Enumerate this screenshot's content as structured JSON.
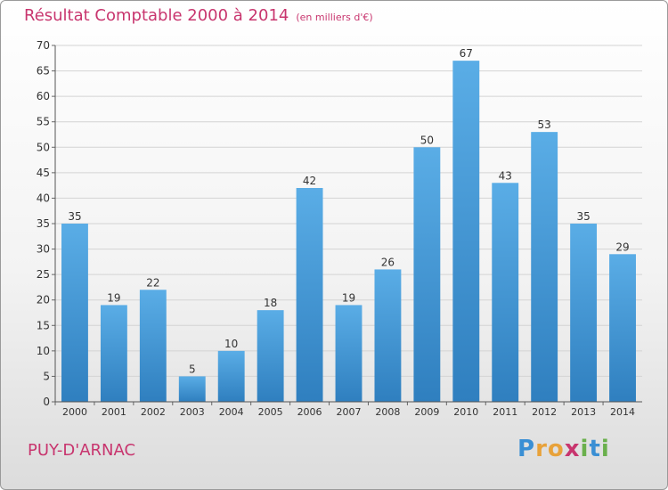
{
  "chart_data": {
    "type": "bar",
    "title": "Résultat Comptable 2000 à 2014",
    "subtitle": "(en milliers d'€)",
    "categories": [
      "2000",
      "2001",
      "2002",
      "2003",
      "2004",
      "2005",
      "2006",
      "2007",
      "2008",
      "2009",
      "2010",
      "2011",
      "2012",
      "2013",
      "2014"
    ],
    "values": [
      35,
      19,
      22,
      5,
      10,
      18,
      42,
      19,
      26,
      50,
      67,
      43,
      53,
      35,
      29
    ],
    "yticks": [
      0,
      5,
      10,
      15,
      20,
      25,
      30,
      35,
      40,
      45,
      50,
      55,
      60,
      65,
      70
    ],
    "ylim": [
      0,
      70
    ],
    "grid": true,
    "xlabel": "",
    "ylabel": "",
    "colors": {
      "bar_top": "#5aade6",
      "bar_bottom": "#2f7fbf",
      "grid": "#d4d4d4",
      "title": "#c8356e"
    }
  },
  "footer": {
    "commune": "PUY-D'ARNAC"
  },
  "logo": {
    "text": "Proxiti",
    "letters": [
      "P",
      "r",
      "o",
      "x",
      "i",
      "t",
      "i"
    ],
    "colors": [
      "#3a8fd4",
      "#e8a23a",
      "#e8a23a",
      "#c8356e",
      "#6ab04c",
      "#3a8fd4",
      "#6ab04c"
    ]
  }
}
